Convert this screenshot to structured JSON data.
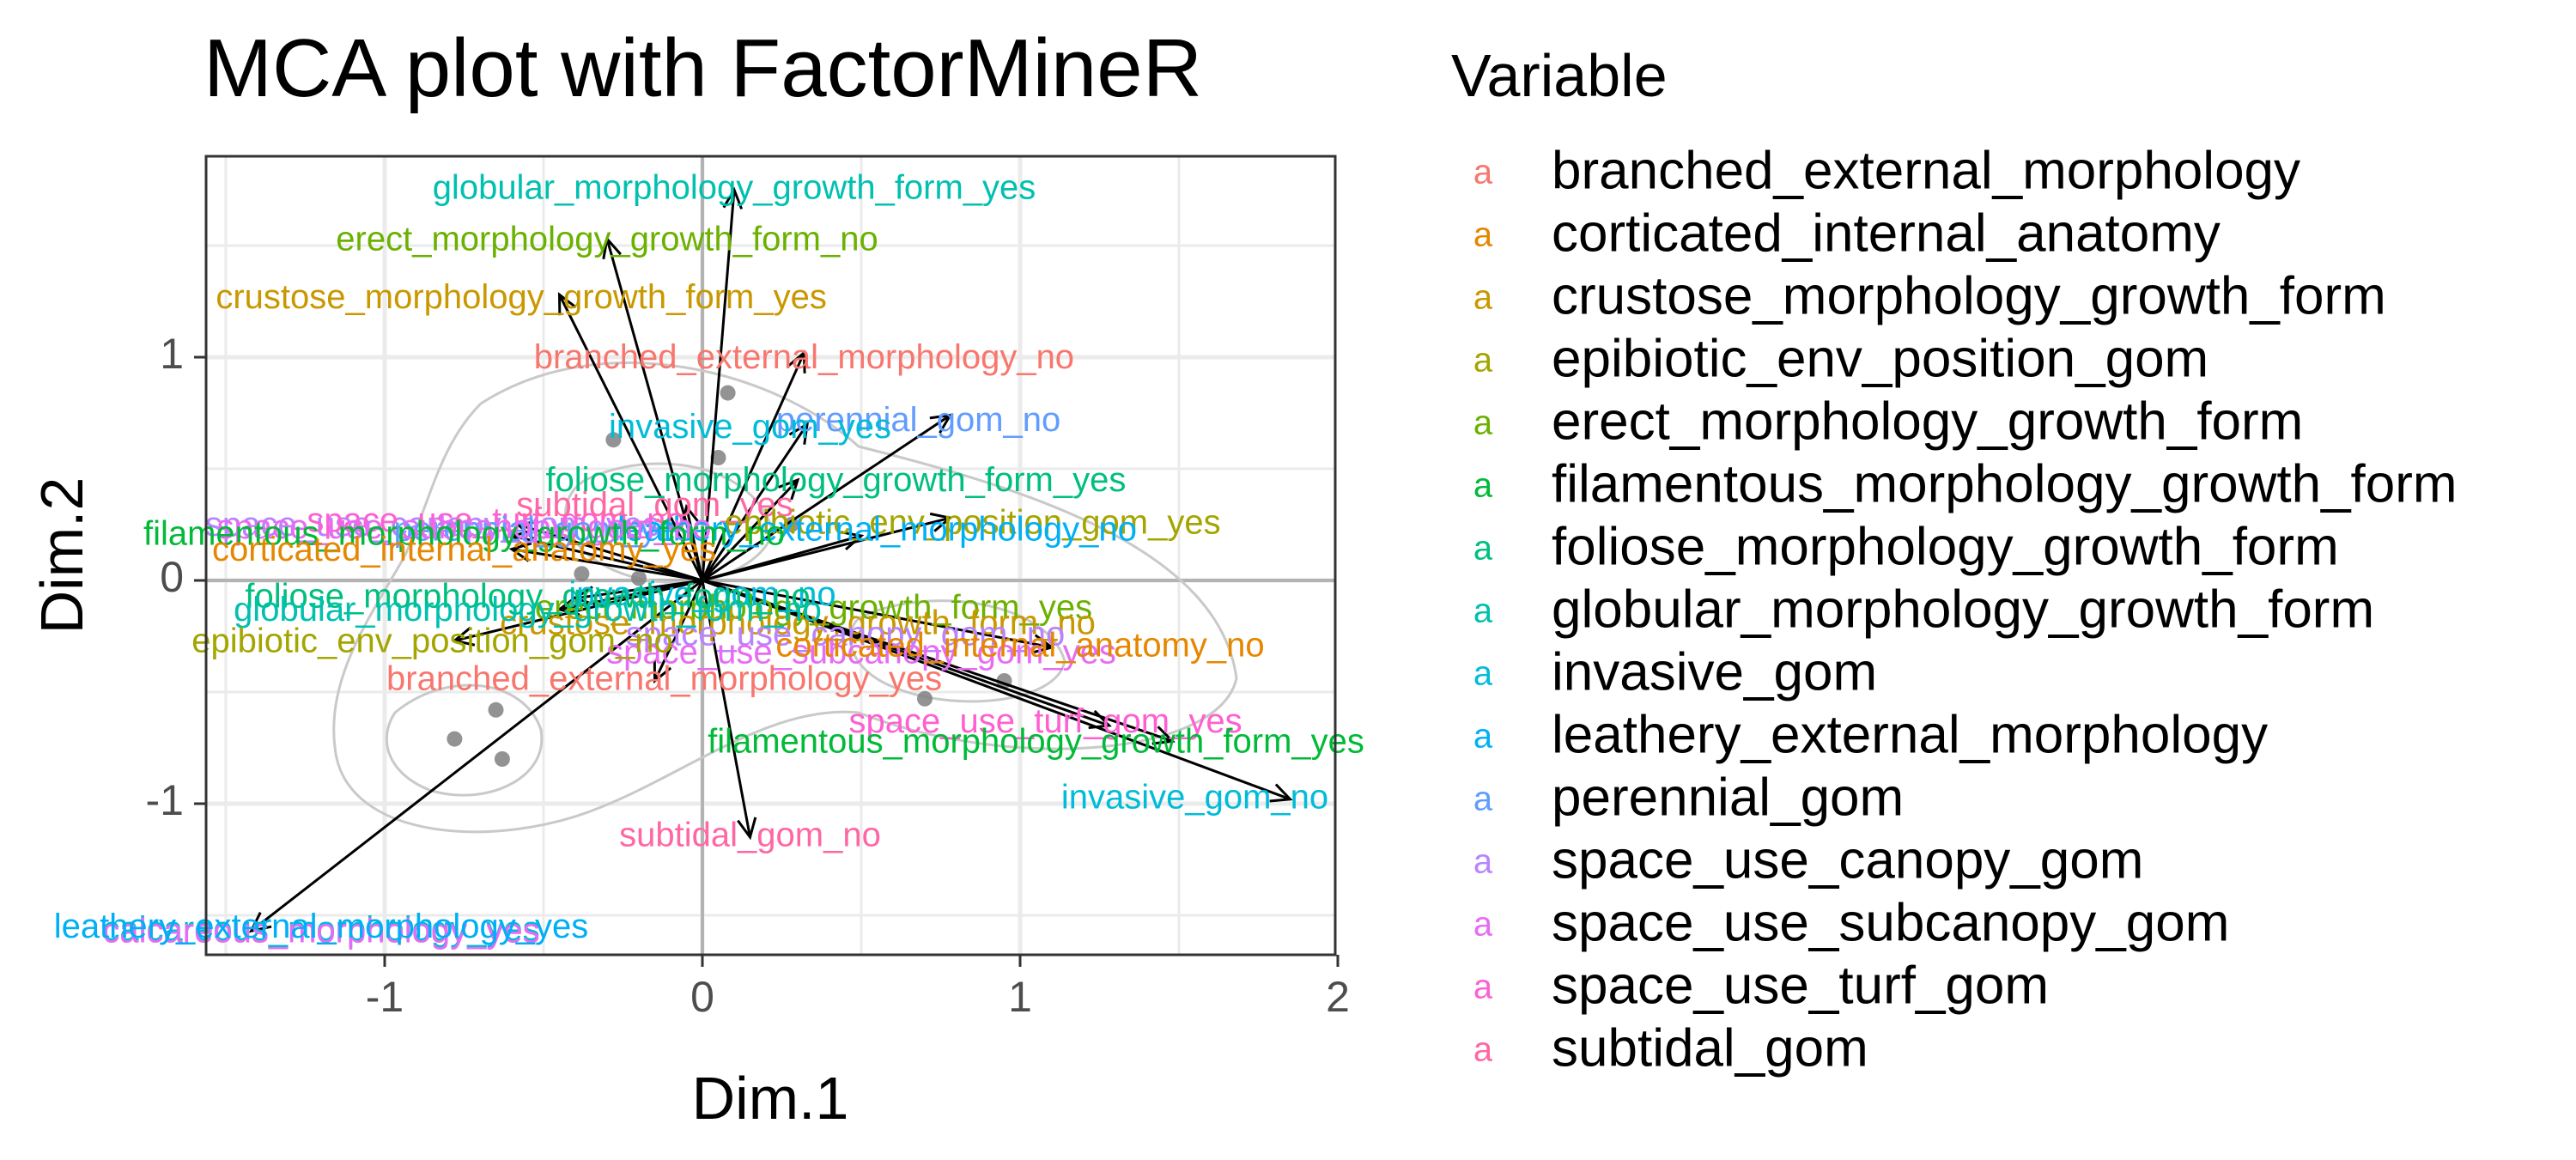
{
  "chart_data": {
    "type": "scatter",
    "title": "MCA plot with FactorMineR",
    "xlabel": "Dim.1",
    "ylabel": "Dim.2",
    "xlim": [
      -1.55,
      2.0
    ],
    "ylim": [
      -1.7,
      1.9
    ],
    "xticks": [
      -1,
      0,
      1,
      2
    ],
    "yticks": [
      -1,
      0,
      1
    ],
    "grid": true,
    "legend": {
      "title": "Variable",
      "position": "right",
      "key_glyph": "a",
      "entries": [
        {
          "name": "branched_external_morphology",
          "color": "#F8766D"
        },
        {
          "name": "corticated_internal_anatomy",
          "color": "#E58700"
        },
        {
          "name": "crustose_morphology_growth_form",
          "color": "#C99800"
        },
        {
          "name": "epibiotic_env_position_gom",
          "color": "#A3A500"
        },
        {
          "name": "erect_morphology_growth_form",
          "color": "#6BB100"
        },
        {
          "name": "filamentous_morphology_growth_form",
          "color": "#00BA38"
        },
        {
          "name": "foliose_morphology_growth_form",
          "color": "#00BF7D"
        },
        {
          "name": "globular_morphology_growth_form",
          "color": "#00C0AF"
        },
        {
          "name": "invasive_gom",
          "color": "#00BCD8"
        },
        {
          "name": "leathery_external_morphology",
          "color": "#00B0F6"
        },
        {
          "name": "perennial_gom",
          "color": "#619CFF"
        },
        {
          "name": "space_use_canopy_gom",
          "color": "#B983FF"
        },
        {
          "name": "space_use_subcanopy_gom",
          "color": "#E76BF3"
        },
        {
          "name": "space_use_turf_gom",
          "color": "#FD61D1"
        },
        {
          "name": "subtidal_gom",
          "color": "#FF67A4"
        }
      ]
    },
    "arrows": [
      {
        "label": "globular_morphology_growth_form_yes",
        "x": 0.1,
        "y": 1.75,
        "lx": 0.1,
        "ly": 1.75,
        "color": "#00C0AF"
      },
      {
        "label": "erect_morphology_growth_form_no",
        "x": -0.3,
        "y": 1.53,
        "lx": -0.3,
        "ly": 1.52,
        "color": "#6BB100"
      },
      {
        "label": "crustose_morphology_growth_form_yes",
        "x": -0.45,
        "y": 1.28,
        "lx": -0.57,
        "ly": 1.26,
        "color": "#C99800"
      },
      {
        "label": "branched_external_morphology_no",
        "x": 0.32,
        "y": 1.02,
        "lx": 0.32,
        "ly": 0.99,
        "color": "#F8766D"
      },
      {
        "label": "perennial_gom_no",
        "x": 0.78,
        "y": 0.74,
        "lx": 0.68,
        "ly": 0.71,
        "color": "#619CFF"
      },
      {
        "label": "invasive_gom_yes",
        "x": 0.33,
        "y": 0.7,
        "lx": 0.15,
        "ly": 0.68,
        "color": "#00BCD8"
      },
      {
        "label": "foliose_morphology_growth_form_yes",
        "x": 0.3,
        "y": 0.45,
        "lx": 0.42,
        "ly": 0.44,
        "color": "#00BF7D"
      },
      {
        "label": "subtidal_gom_yes",
        "x": -0.05,
        "y": 0.33,
        "lx": -0.15,
        "ly": 0.33,
        "color": "#FF67A4"
      },
      {
        "label": "epibiotic_env_position_gom_yes",
        "x": 0.78,
        "y": 0.28,
        "lx": 0.85,
        "ly": 0.25,
        "color": "#A3A500"
      },
      {
        "label": "leathery_external_morphology_no",
        "x": 0.5,
        "y": 0.2,
        "lx": 0.55,
        "ly": 0.22,
        "color": "#00B0F6"
      },
      {
        "label": "space_use_subcanopy_gom_no",
        "x": -0.58,
        "y": 0.25,
        "lx": -0.75,
        "ly": 0.23,
        "color": "#E76BF3"
      },
      {
        "label": "filamentous_morphology_growth_form_no",
        "x": -0.6,
        "y": 0.2,
        "lx": -0.75,
        "ly": 0.2,
        "color": "#00BA38"
      },
      {
        "label": "corticated_internal_anatomy_yes",
        "x": -0.6,
        "y": 0.14,
        "lx": -0.75,
        "ly": 0.13,
        "color": "#E58700"
      },
      {
        "label": "foliose_morphology_growth_form_no",
        "x": -0.4,
        "y": -0.08,
        "lx": -0.55,
        "ly": -0.08,
        "color": "#00BF7D"
      },
      {
        "label": "globular_morphology_growth_form_no",
        "x": -0.45,
        "y": -0.13,
        "lx": -0.55,
        "ly": -0.14,
        "color": "#00C0AF"
      },
      {
        "label": "epibiotic_env_position_gom_no",
        "x": -0.78,
        "y": -0.27,
        "lx": -0.85,
        "ly": -0.28,
        "color": "#A3A500"
      },
      {
        "label": "corticated_internal_anatomy_no",
        "x": 1.1,
        "y": -0.3,
        "lx": 1.0,
        "ly": -0.3,
        "color": "#E58700"
      },
      {
        "label": "branched_external_morphology_yes",
        "x": -0.15,
        "y": -0.45,
        "lx": -0.12,
        "ly": -0.45,
        "color": "#F8766D"
      },
      {
        "label": "space_use_turf_gom_yes",
        "x": 1.28,
        "y": -0.65,
        "lx": 1.08,
        "ly": -0.64,
        "color": "#FD61D1"
      },
      {
        "label": "filamentous_morphology_growth_form_yes",
        "x": 1.48,
        "y": -0.72,
        "lx": 1.05,
        "ly": -0.73,
        "color": "#00BA38"
      },
      {
        "label": "invasive_gom_no",
        "x": 1.85,
        "y": -0.98,
        "lx": 1.55,
        "ly": -0.98,
        "color": "#00BCD8"
      },
      {
        "label": "subtidal_gom_no",
        "x": 0.15,
        "y": -1.15,
        "lx": 0.15,
        "ly": -1.15,
        "color": "#FF67A4"
      },
      {
        "label": "leathery_external_morphology_yes",
        "x": -1.42,
        "y": -1.57,
        "lx": -1.2,
        "ly": -1.56,
        "color": "#00B0F6"
      }
    ],
    "minor_labels": [
      {
        "label": "space_use_canopy_gom_yes",
        "lx": -0.85,
        "ly": 0.24,
        "color": "#B983FF"
      },
      {
        "label": "space_use_turf_gom_no",
        "lx": -0.65,
        "ly": 0.26,
        "color": "#FD61D1"
      },
      {
        "label": "perennial_gom_yes",
        "lx": -0.5,
        "ly": 0.22,
        "color": "#619CFF"
      },
      {
        "label": "erect_morphology_growth_form_yes",
        "lx": 0.35,
        "ly": -0.13,
        "color": "#6BB100"
      },
      {
        "label": "crustose_morphology_growth_form_no",
        "lx": 0.3,
        "ly": -0.2,
        "color": "#C99800"
      },
      {
        "label": "space_use_canopy_gom_no",
        "lx": 0.45,
        "ly": -0.25,
        "color": "#B983FF"
      },
      {
        "label": "space_use_subcanopy_gom_yes",
        "lx": 0.5,
        "ly": -0.33,
        "color": "#E76BF3"
      },
      {
        "label": "invasive_gom_no",
        "lx": 0.0,
        "ly": -0.07,
        "color": "#00BCD8"
      },
      {
        "label": "calcareous_morphology_yes",
        "lx": -1.2,
        "ly": -1.57,
        "color": "#00BCD8"
      },
      {
        "label": "calcareous_morphology_yes",
        "lx": -1.2,
        "ly": -1.58,
        "color": "#E76BF3"
      }
    ],
    "points": [
      {
        "x": 0.08,
        "y": 0.84
      },
      {
        "x": -0.28,
        "y": 0.63
      },
      {
        "x": 0.05,
        "y": 0.55
      },
      {
        "x": -0.38,
        "y": 0.03
      },
      {
        "x": -0.2,
        "y": 0.01
      },
      {
        "x": 0.28,
        "y": 0.25
      },
      {
        "x": -0.65,
        "y": -0.58
      },
      {
        "x": -0.78,
        "y": -0.71
      },
      {
        "x": -0.63,
        "y": -0.8
      },
      {
        "x": 0.7,
        "y": -0.53
      },
      {
        "x": 0.95,
        "y": -0.45
      }
    ]
  }
}
